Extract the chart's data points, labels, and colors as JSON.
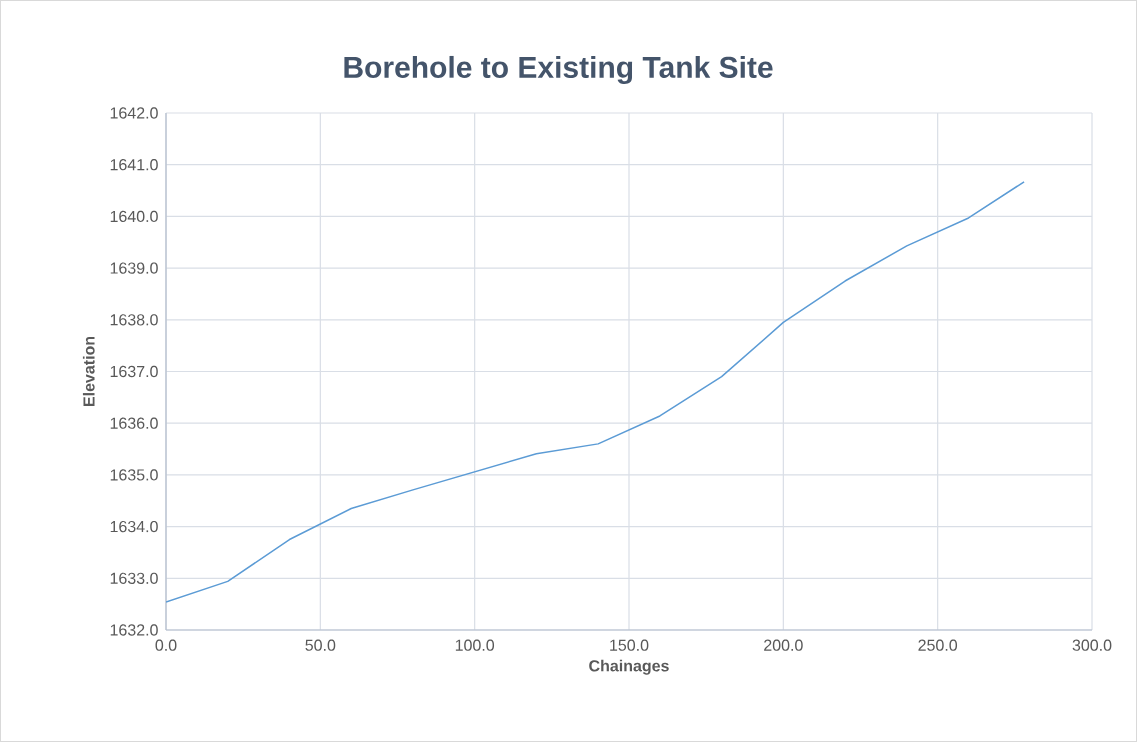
{
  "chart_data": {
    "type": "line",
    "title": "Borehole to Existing Tank Site",
    "xlabel": "Chainages",
    "ylabel": "Elevation",
    "x": [
      0,
      20,
      40,
      60,
      80,
      100,
      120,
      140,
      160,
      180,
      200,
      220,
      240,
      260,
      278
    ],
    "series": [
      {
        "color": "#5b9bd5",
        "values": [
          1632.54,
          1632.94,
          1633.75,
          1634.35,
          1634.71,
          1635.06,
          1635.41,
          1635.6,
          1636.14,
          1636.9,
          1637.95,
          1638.75,
          1639.43,
          1639.97,
          1640.67
        ]
      }
    ],
    "xlim": [
      0,
      300
    ],
    "ylim": [
      1632,
      1642
    ],
    "xticks": [
      {
        "value": 0,
        "label": "0.0"
      },
      {
        "value": 50,
        "label": "50.0"
      },
      {
        "value": 100,
        "label": "100.0"
      },
      {
        "value": 150,
        "label": "150.0"
      },
      {
        "value": 200,
        "label": "200.0"
      },
      {
        "value": 250,
        "label": "250.0"
      },
      {
        "value": 300,
        "label": "300.0"
      }
    ],
    "yticks": [
      {
        "value": 1632,
        "label": "1632.0"
      },
      {
        "value": 1633,
        "label": "1633.0"
      },
      {
        "value": 1634,
        "label": "1634.0"
      },
      {
        "value": 1635,
        "label": "1635.0"
      },
      {
        "value": 1636,
        "label": "1636.0"
      },
      {
        "value": 1637,
        "label": "1637.0"
      },
      {
        "value": 1638,
        "label": "1638.0"
      },
      {
        "value": 1639,
        "label": "1639.0"
      },
      {
        "value": 1640,
        "label": "1640.0"
      },
      {
        "value": 1641,
        "label": "1641.0"
      },
      {
        "value": 1642,
        "label": "1642.0"
      }
    ],
    "grid": true
  }
}
